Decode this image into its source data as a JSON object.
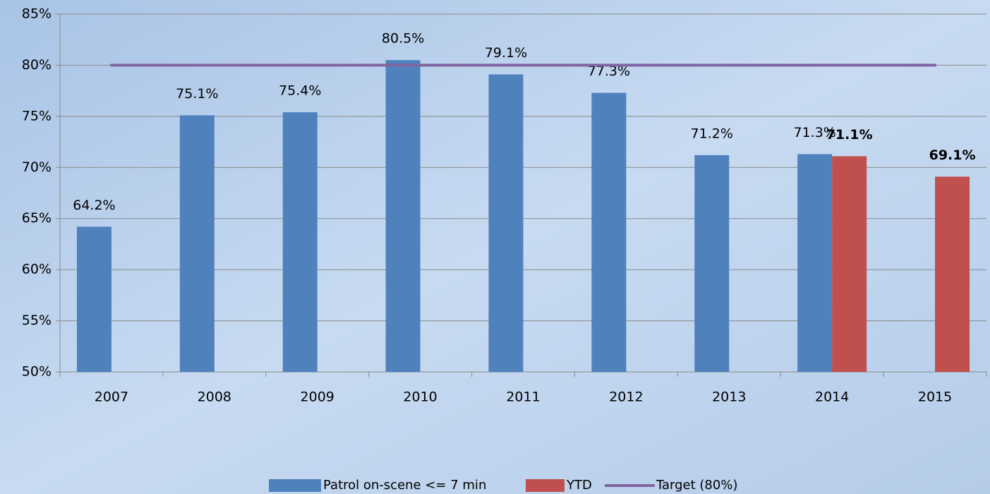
{
  "chart_data": {
    "type": "bar",
    "categories": [
      "2007",
      "2008",
      "2009",
      "2010",
      "2011",
      "2012",
      "2013",
      "2014",
      "2015"
    ],
    "series": [
      {
        "name": "Patrol on-scene <= 7 min",
        "color": "#4f81bd",
        "values": [
          64.2,
          75.1,
          75.4,
          80.5,
          79.1,
          77.3,
          71.2,
          71.3,
          null
        ],
        "value_labels": [
          "64.2%",
          "75.1%",
          "75.4%",
          "80.5%",
          "79.1%",
          "77.3%",
          "71.2%",
          "71.3%",
          null
        ],
        "label_bold": false
      },
      {
        "name": "YTD",
        "color": "#c0504d",
        "values": [
          null,
          null,
          null,
          null,
          null,
          null,
          null,
          71.1,
          69.1
        ],
        "value_labels": [
          null,
          null,
          null,
          null,
          null,
          null,
          null,
          "71.1%",
          "69.1%"
        ],
        "label_bold": true
      },
      {
        "name": "Target (80%)",
        "color": "#8064a2",
        "type": "line",
        "values": [
          80,
          80,
          80,
          80,
          80,
          80,
          80,
          80,
          80
        ]
      }
    ],
    "ylim": [
      50,
      85
    ],
    "yticks": [
      {
        "value": 50,
        "label": "50%"
      },
      {
        "value": 55,
        "label": "55%"
      },
      {
        "value": 60,
        "label": "60%"
      },
      {
        "value": 65,
        "label": "65%"
      },
      {
        "value": 70,
        "label": "70%"
      },
      {
        "value": 75,
        "label": "75%"
      },
      {
        "value": 80,
        "label": "80%"
      },
      {
        "value": 85,
        "label": "85%"
      }
    ],
    "grid": true,
    "legend": "bottom"
  }
}
